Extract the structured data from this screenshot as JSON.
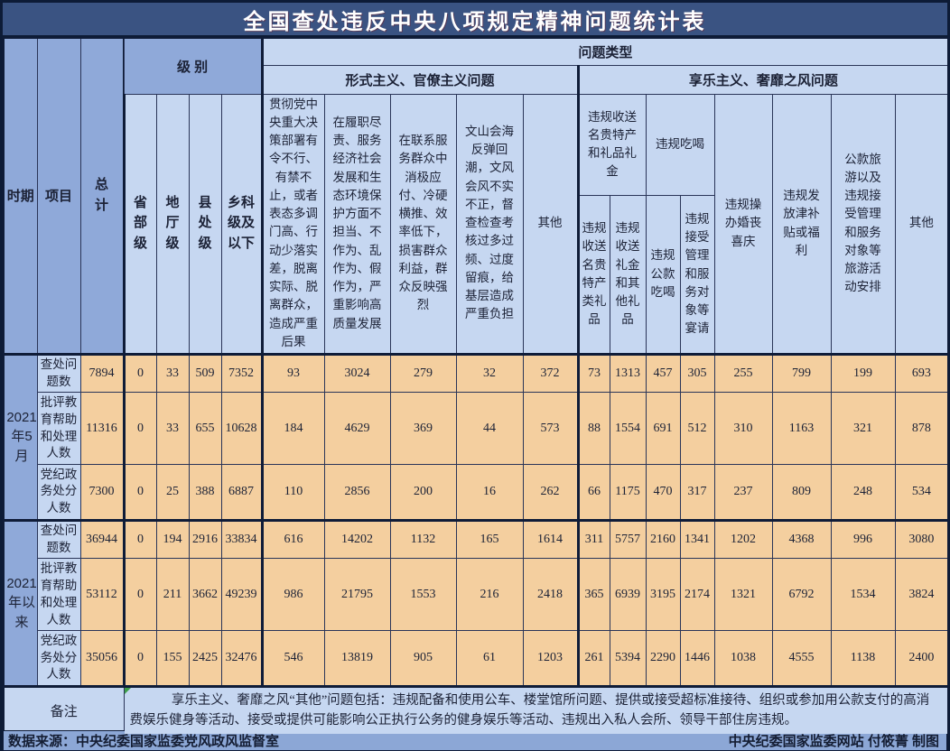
{
  "title": "全国查处违反中央八项规定精神问题统计表",
  "colors": {
    "page_background": "#0d1b36",
    "title_bar": "#3a5382",
    "title_text": "#ffffff",
    "header_medium_blue": "#8fa9d9",
    "header_light_blue": "#c6d7f1",
    "data_cell_tan": "#f4cf9f",
    "grid_line": "#2a3558",
    "grid_dark": "#0f1c38",
    "source_bar": "#8ca7d6",
    "note_marker_green": "#3d9e4a"
  },
  "chart_data": {
    "type": "table",
    "title": "全国查处违反中央八项规定精神问题统计表",
    "header": {
      "period": "时期",
      "item": "项目",
      "total": "总计",
      "level_group": "级 别",
      "levels": [
        "省部级",
        "地厅级",
        "县处级",
        "乡科级及以下"
      ],
      "problem_type_group": "问题类型",
      "formalism_group": "形式主义、官僚主义问题",
      "formalism_cols": [
        "贯彻党中央重大决策部署有令不行、有禁不止，或者表态多调门高、行动少落实差，脱离实际、脱离群众，造成严重后果",
        "在履职尽责、服务经济社会发展和生态环境保护方面不担当、不作为、乱作为、假作为，严重影响高质量发展",
        "在联系服务群众中消极应付、冷硬横推、效率低下，损害群众利益，群众反映强烈",
        "文山会海反弹回潮，文风会风不实不正，督查检查考核过多过频、过度留痕，给基层造成严重负担",
        "其他"
      ],
      "hedonism_group": "享乐主义、奢靡之风问题",
      "gifts_group": "违规收送名贵特产和礼品礼金",
      "gifts_cols": [
        "违规收送名贵特产类礼品",
        "违规收送礼金和其他礼品"
      ],
      "dining_group": "违规吃喝",
      "dining_cols": [
        "违规公款吃喝",
        "违规接受管理和服务对象等宴请"
      ],
      "wedding_col": "违规操办婚丧喜庆",
      "allowance_col": "违规发放津补贴或福利",
      "travel_col": "公款旅游以及违规接受管理和服务对象等旅游活动安排",
      "other_col": "其他"
    },
    "leaf_columns": [
      "总计",
      "省部级",
      "地厅级",
      "县处级",
      "乡科级及以下",
      "形式主义1-贯彻决策部署问题",
      "形式主义2-履职尽责问题",
      "形式主义3-联系服务群众问题",
      "形式主义4-文山会海问题",
      "形式主义5-其他",
      "违规收送名贵特产类礼品",
      "违规收送礼金和其他礼品",
      "违规公款吃喝",
      "违规接受管理和服务对象等宴请",
      "违规操办婚丧喜庆",
      "违规发放津补贴或福利",
      "公款旅游以及违规接受管理和服务对象等旅游活动安排",
      "其他"
    ],
    "row_groups": [
      {
        "period": "2021年5月",
        "rows": [
          {
            "label": "查处问题数",
            "values": [
              7894,
              0,
              33,
              509,
              7352,
              93,
              3024,
              279,
              32,
              372,
              73,
              1313,
              457,
              305,
              255,
              799,
              199,
              693
            ]
          },
          {
            "label": "批评教育帮助和处理人数",
            "values": [
              11316,
              0,
              33,
              655,
              10628,
              184,
              4629,
              369,
              44,
              573,
              88,
              1554,
              691,
              512,
              310,
              1163,
              321,
              878
            ]
          },
          {
            "label": "党纪政务处分人数",
            "values": [
              7300,
              0,
              25,
              388,
              6887,
              110,
              2856,
              200,
              16,
              262,
              66,
              1175,
              470,
              317,
              237,
              809,
              248,
              534
            ]
          }
        ]
      },
      {
        "period": "2021年以来",
        "rows": [
          {
            "label": "查处问题数",
            "values": [
              36944,
              0,
              194,
              2916,
              33834,
              616,
              14202,
              1132,
              165,
              1614,
              311,
              5757,
              2160,
              1341,
              1202,
              4368,
              996,
              3080
            ]
          },
          {
            "label": "批评教育帮助和处理人数",
            "values": [
              53112,
              0,
              211,
              3662,
              49239,
              986,
              21795,
              1553,
              216,
              2418,
              365,
              6939,
              3195,
              2174,
              1321,
              6792,
              1534,
              3824
            ]
          },
          {
            "label": "党纪政务处分人数",
            "values": [
              35056,
              0,
              155,
              2425,
              32476,
              546,
              13819,
              905,
              61,
              1203,
              261,
              5394,
              2290,
              1446,
              1038,
              4555,
              1138,
              2400
            ]
          }
        ]
      }
    ]
  },
  "footer": {
    "note_label": "备注",
    "note_text": "享乐主义、奢靡之风“其他”问题包括：违规配备和使用公车、楼堂馆所问题、提供或接受超标准接待、组织或参加用公款支付的高消费娱乐健身等活动、接受或提供可能影响公正执行公务的健身娱乐等活动、违规出入私人会所、领导干部住房违规。",
    "source": "数据来源：中央纪委国家监委党风政风监督室",
    "credit": "中央纪委国家监委网站 付筱菁 制图"
  }
}
